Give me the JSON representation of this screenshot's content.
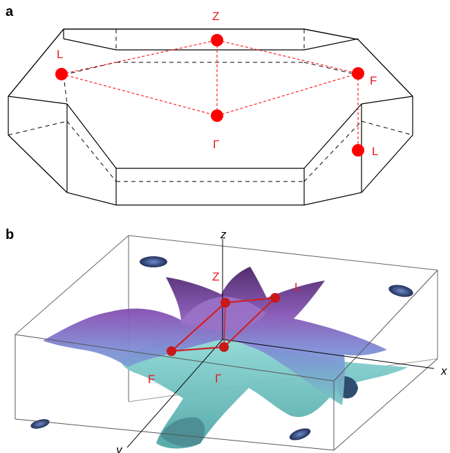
{
  "panel_a": {
    "label": "a",
    "points": {
      "Z": "Z",
      "L_left": "L",
      "F": "F",
      "Gamma": "Γ",
      "L_right": "L"
    },
    "point_color": "#ff0000"
  },
  "panel_b": {
    "label": "b",
    "axes": {
      "z": "z",
      "x": "x",
      "y": "y"
    },
    "points": {
      "Z": "Z",
      "L": "L",
      "F": "F",
      "Gamma": "Γ"
    },
    "colors": {
      "surface_top": "#5a2c78",
      "surface_mid": "#8a5ab8",
      "surface_bottom": "#6fbfbf",
      "pocket": "#283a6a",
      "path": "#d02020"
    }
  }
}
